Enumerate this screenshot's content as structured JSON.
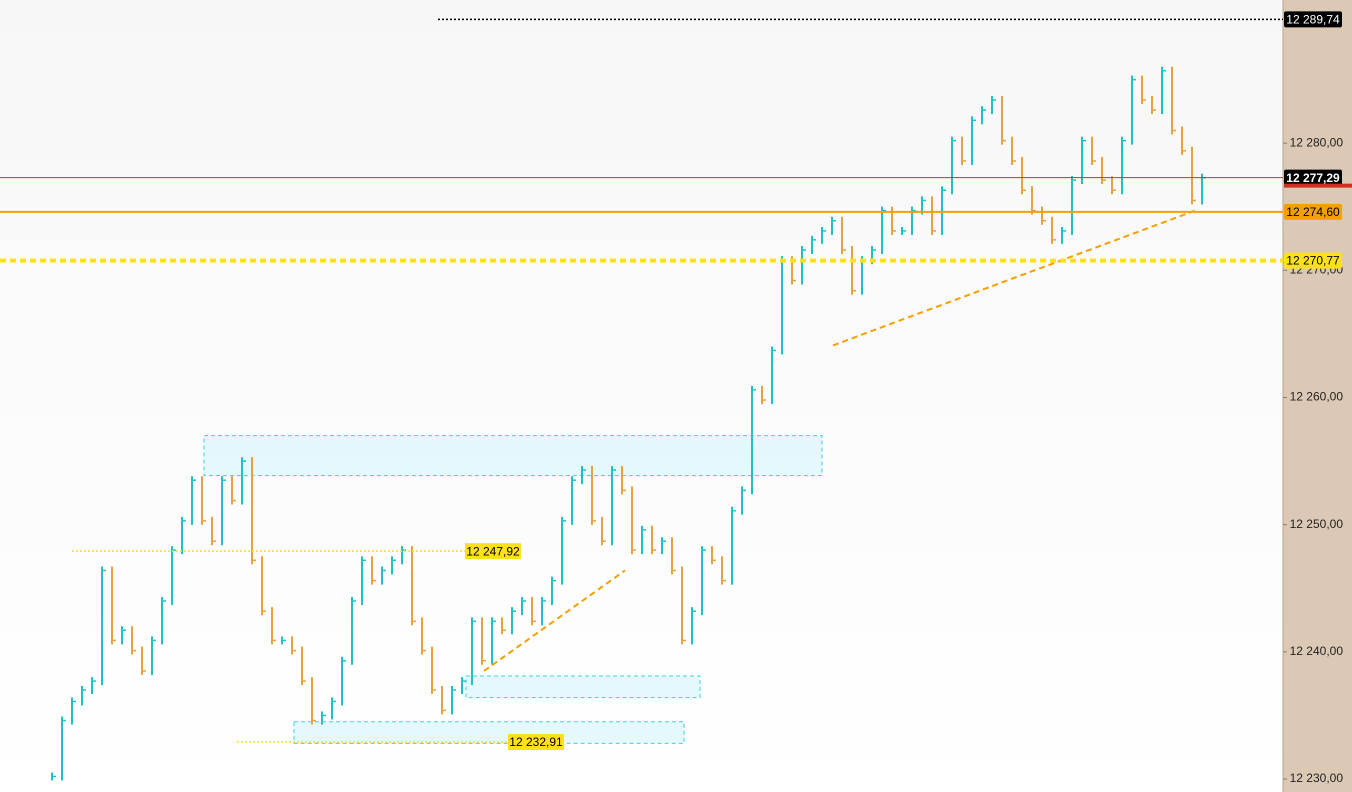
{
  "chart_data": {
    "type": "bars",
    "ylim": [
      12228.98,
      12291.26
    ],
    "yticks": [
      {
        "value": 12230,
        "label": "12 230,00"
      },
      {
        "value": 12240,
        "label": "12 240,00"
      },
      {
        "value": 12250,
        "label": "12 250,00"
      },
      {
        "value": 12260,
        "label": "12 260,00"
      },
      {
        "value": 12270,
        "label": "12 270,00"
      },
      {
        "value": 12280,
        "label": "12 280,00"
      }
    ],
    "up_color": "#20c0c8",
    "down_color": "#e6a23c",
    "values": [
      12230.2,
      12234.6,
      12236.1,
      12237,
      12237.7,
      12246.4,
      12240.9,
      12241.7,
      12240.1,
      12238.5,
      12240.9,
      12244,
      12248,
      12250.3,
      12253.5,
      12250.3,
      12248.7,
      12253.5,
      12251.9,
      12255,
      12247.2,
      12243.2,
      12240.9,
      12240.9,
      12240.1,
      12237.7,
      12234.6,
      12235,
      12236.1,
      12239.3,
      12244,
      12247.2,
      12245.6,
      12246.4,
      12247.2,
      12248,
      12242.4,
      12240.1,
      12237,
      12235.4,
      12237,
      12237.7,
      12242.4,
      12239.3,
      12242.4,
      12241.7,
      12243.2,
      12244,
      12242.4,
      12244,
      12245.6,
      12250.3,
      12253.5,
      12254.3,
      12250.3,
      12248.7,
      12254.3,
      12252.7,
      12248,
      12249.6,
      12248,
      12248.7,
      12246.4,
      12240.9,
      12243.2,
      12248,
      12247.2,
      12245.6,
      12251.1,
      12252.7,
      12260.6,
      12259.8,
      12263.7,
      12270.8,
      12269.2,
      12271.6,
      12272.4,
      12273.1,
      12273.9,
      12271.6,
      12268.4,
      12270.8,
      12271.6,
      12274.7,
      12273.1,
      12273.1,
      12274.7,
      12275.5,
      12273.1,
      12276.3,
      12280.2,
      12278.6,
      12281.8,
      12282.6,
      12283.4,
      12280.2,
      12278.6,
      12276.3,
      12274.7,
      12273.9,
      12272.4,
      12273.1,
      12277.1,
      12280.2,
      12278.6,
      12277.1,
      12276.3,
      12280.2,
      12285,
      12283.4,
      12282.6,
      12285.7,
      12281,
      12279.4,
      12275.5,
      12277.29
    ],
    "levels": [
      {
        "value": 12289.74,
        "label": "12 289,74",
        "color": "#000000",
        "style": "dotted",
        "label_position": "axis"
      },
      {
        "value": 12277.29,
        "label": "12 277,29",
        "color": "#d03020",
        "style": "solid",
        "label_position": "axis"
      },
      {
        "value": 12274.6,
        "label": "12 274,60",
        "color": "#f5a000",
        "style": "solid",
        "label_position": "axis"
      },
      {
        "value": 12270.77,
        "label": "12 270,77",
        "color": "#ffe11a",
        "style": "dashed",
        "label_position": "axis"
      },
      {
        "value": 12247.92,
        "label": "12 247,92",
        "color": "#ffe11a",
        "style": "dotted",
        "label_position": "inline"
      },
      {
        "value": 12232.91,
        "label": "12 232,91",
        "color": "#ffe11a",
        "style": "dotted",
        "label_position": "inline"
      }
    ],
    "zones": [
      {
        "top": 12257.0,
        "bottom": 12253.86
      },
      {
        "top": 12238.1,
        "bottom": 12236.4
      },
      {
        "top": 12234.5,
        "bottom": 12232.8
      }
    ],
    "trendlines": [
      {
        "from": 12238.5,
        "to": 12246.4
      },
      {
        "from": 12264.1,
        "to": 12274.7
      }
    ]
  }
}
